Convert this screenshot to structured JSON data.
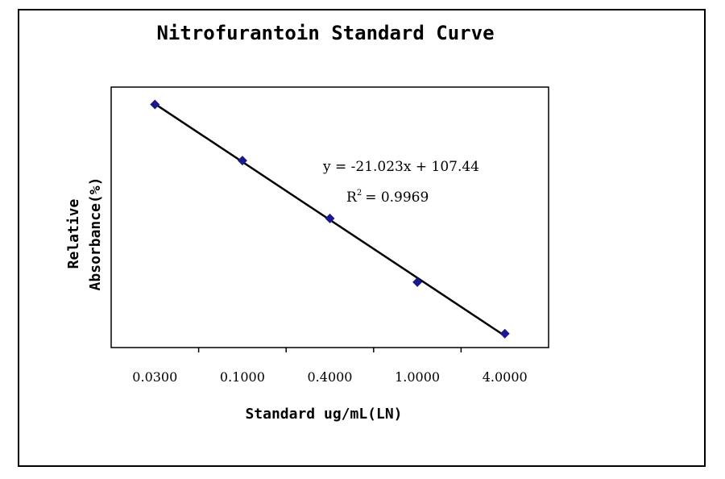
{
  "chart_data": {
    "type": "scatter",
    "title": "Nitrofurantoin Standard Curve",
    "xlabel": "Standard ug/mL(LN)",
    "ylabel_lines": [
      "Relative",
      "Absorbance(%)"
    ],
    "x_scale": "log",
    "x_ticks": [
      "0.0300",
      "0.1000",
      "0.4000",
      "1.0000",
      "4.0000"
    ],
    "series": [
      {
        "x": [
          0.03,
          0.1,
          0.4,
          1.0,
          4.0
        ],
        "y": [
          107.0,
          97.3,
          87.3,
          76.3,
          67.4
        ]
      }
    ],
    "trendline": {
      "equation": "y = -21.023x + 107.44",
      "r2_label": "R",
      "r2_sup": "2",
      "r2_value": "= 0.9969"
    },
    "grid": false,
    "colors": {
      "markers": "#1a1a8c",
      "trendline": "#000000"
    }
  }
}
